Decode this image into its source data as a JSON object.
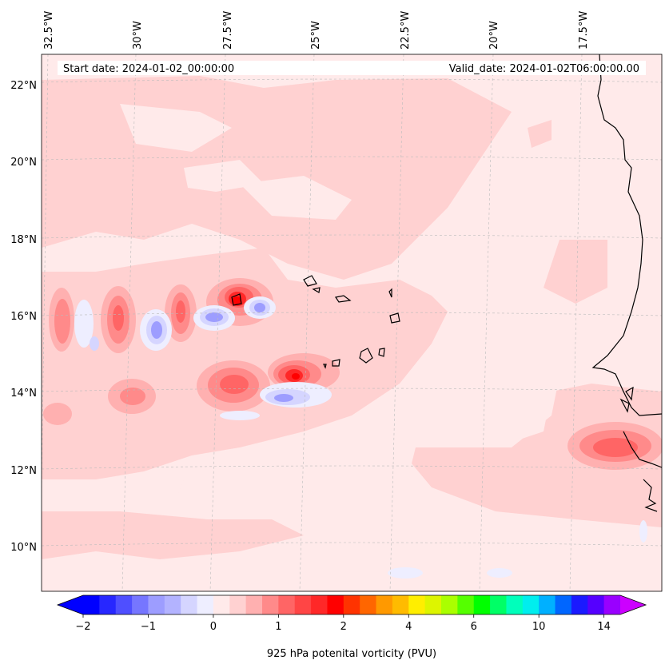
{
  "map": {
    "region": "Eastern tropical Atlantic / Cape Verde / West Africa coast",
    "lon_labels": [
      "32.5°W",
      "30°W",
      "27.5°W",
      "25°W",
      "22.5°W",
      "20°W",
      "17.5°W"
    ],
    "lon_values": [
      -32.5,
      -30,
      -27.5,
      -25,
      -22.5,
      -20,
      -17.5
    ],
    "lat_labels": [
      "22°N",
      "20°N",
      "18°N",
      "16°N",
      "14°N",
      "12°N",
      "10°N"
    ],
    "lat_values": [
      22,
      20,
      18,
      16,
      14,
      12,
      10
    ],
    "lon_range": [
      -32.7,
      -15.0
    ],
    "lat_range": [
      8.9,
      22.7
    ]
  },
  "info": {
    "start_date": "Start date: 2024-01-02_00:00:00",
    "valid_date": "Valid_date: 2024-01-02T06:00:00.00"
  },
  "colorbar": {
    "label": "925 hPa potenital vorticity (PVU)",
    "tick_labels": [
      "−2",
      "−1",
      "0",
      "1",
      "2",
      "4",
      "6",
      "10",
      "14"
    ],
    "colors": [
      "#0000ff",
      "#2727ff",
      "#4f4fff",
      "#7676ff",
      "#9d9dff",
      "#b3b3ff",
      "#d5d5ff",
      "#eeeeff",
      "#ffeaea",
      "#ffd1d1",
      "#ffb0b0",
      "#ff8a8a",
      "#ff6565",
      "#ff4545",
      "#ff2828",
      "#ff0000",
      "#ff3300",
      "#ff6600",
      "#ff9900",
      "#ffbb00",
      "#ffee00",
      "#ddf500",
      "#aaff00",
      "#55ff00",
      "#00ff00",
      "#00ff66",
      "#00ffbb",
      "#00eeee",
      "#00b0ff",
      "#0066ff",
      "#1a1aff",
      "#5500ff",
      "#9900ff"
    ],
    "extend_low": "#0000ff",
    "extend_high": "#cc00ff"
  },
  "features": {
    "high_pv": [
      {
        "name": "cell-north-west",
        "lon": -27.2,
        "lat": 16.3,
        "peak": "2 PVU"
      },
      {
        "name": "cell-south-central",
        "lon": -24.8,
        "lat": 14.4,
        "peak": "2 PVU"
      },
      {
        "name": "cell-africa-coast",
        "lon": -16.0,
        "lat": 12.7,
        "peak": "1 PVU"
      }
    ],
    "low_pv": [
      {
        "name": "low-cell-1",
        "lon": -28.2,
        "lat": 15.8
      },
      {
        "name": "low-cell-2",
        "lon": -26.0,
        "lat": 16.0
      },
      {
        "name": "low-cell-3",
        "lon": -25.5,
        "lat": 13.8
      }
    ]
  }
}
